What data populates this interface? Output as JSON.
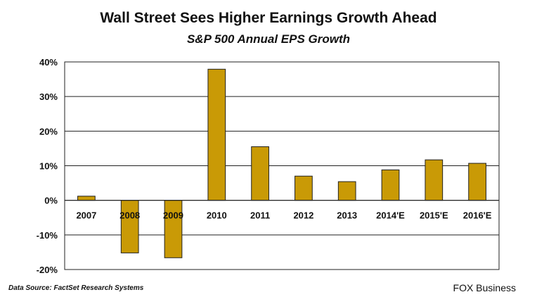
{
  "chart_data": {
    "type": "bar",
    "title": "Wall Street Sees Higher Earnings Growth Ahead",
    "subtitle": "S&P 500 Annual EPS Growth",
    "xlabel": "",
    "ylabel": "",
    "categories": [
      "2007",
      "2008",
      "2009",
      "2010",
      "2011",
      "2012",
      "2013",
      "2014'E",
      "2015'E",
      "2016'E"
    ],
    "values": [
      1.2,
      -15.2,
      -16.6,
      37.9,
      15.5,
      7.0,
      5.4,
      8.8,
      11.7,
      10.7
    ],
    "ylim": [
      -20,
      40
    ],
    "yticks": [
      -20,
      -10,
      0,
      10,
      20,
      30,
      40
    ],
    "ytick_labels": [
      "-20%",
      "-10%",
      "0%",
      "10%",
      "20%",
      "30%",
      "40%"
    ],
    "grid": true,
    "bar_color": "#c99a06"
  },
  "footer": {
    "source": "Data Source: FactSet Research Systems",
    "brand": "FOX Business"
  }
}
